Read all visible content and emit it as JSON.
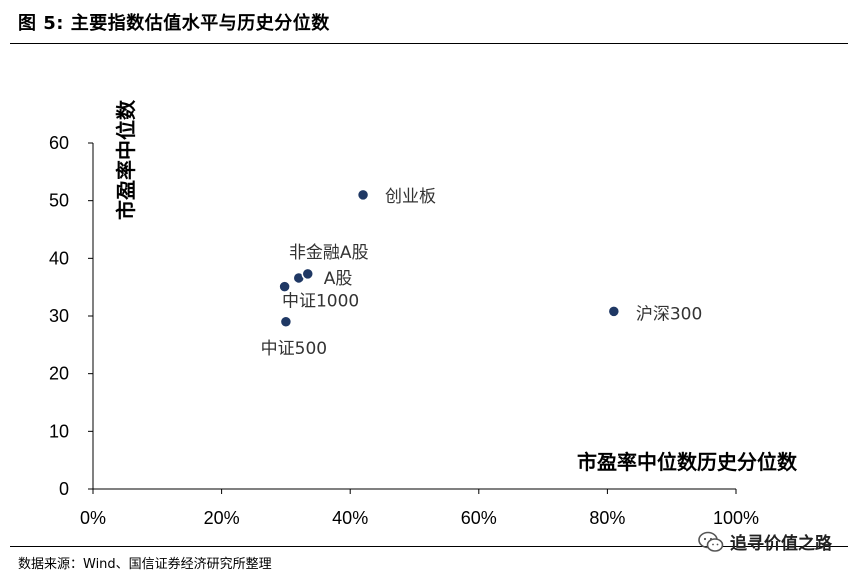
{
  "figure": {
    "title": "图 5:  主要指数估值水平与历史分位数",
    "source": "数据来源：Wind、国信证券经济研究所整理",
    "watermark": "追寻价值之路",
    "watermark_icon": "wechat-icon"
  },
  "chart_data": {
    "type": "scatter",
    "title": "",
    "xlabel": "市盈率中位数历史分位数",
    "ylabel": "市盈率中位数",
    "xlim": [
      0,
      1
    ],
    "ylim": [
      0,
      60
    ],
    "x_ticks": [
      0,
      0.2,
      0.4,
      0.6,
      0.8,
      1.0
    ],
    "x_tick_labels": [
      "0%",
      "20%",
      "40%",
      "60%",
      "80%",
      "100%"
    ],
    "y_ticks": [
      0,
      10,
      20,
      30,
      40,
      50,
      60
    ],
    "y_tick_labels": [
      "0",
      "10",
      "20",
      "30",
      "40",
      "50",
      "60"
    ],
    "grid": false,
    "marker_color": "#1f3864",
    "points": [
      {
        "label": "创业板",
        "x": 0.42,
        "y": 51.0
      },
      {
        "label": "非金融A股",
        "x": 0.32,
        "y": 36.6
      },
      {
        "label": "A股",
        "x": 0.334,
        "y": 37.3
      },
      {
        "label": "中证1000",
        "x": 0.298,
        "y": 35.1
      },
      {
        "label": "中证500",
        "x": 0.3,
        "y": 29.0
      },
      {
        "label": "沪深300",
        "x": 0.81,
        "y": 30.8
      }
    ]
  }
}
